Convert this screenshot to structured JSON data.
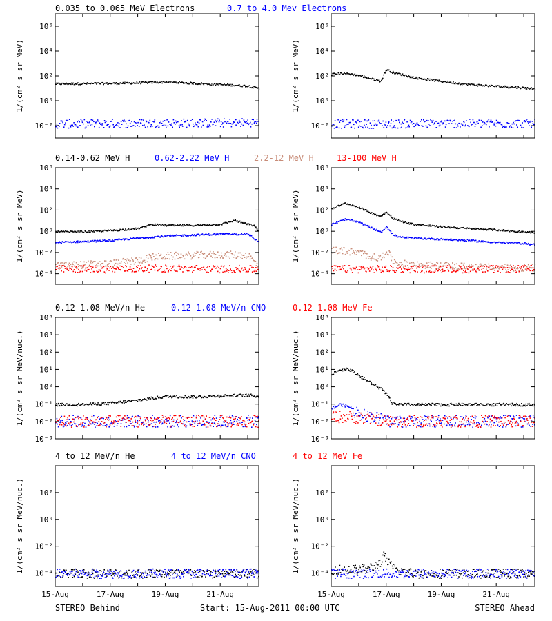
{
  "footer": {
    "left": "STEREO Behind",
    "center": "Start: 15-Aug-2011 00:00 UTC",
    "right": "STEREO Ahead"
  },
  "chart_data": [
    {
      "type": "scatter",
      "row": 1,
      "spacecraft": "STEREO Behind",
      "legend": [
        {
          "text": "0.035 to 0.065 MeV Electrons",
          "color": "#000000"
        },
        {
          "text": "0.7 to 4.0 Mev Electrons",
          "color": "#0000ff"
        }
      ],
      "ylabel": "1/(cm² s sr MeV)",
      "yscale": "log",
      "ylim": [
        0.001,
        10000000
      ],
      "yticks": [
        {
          "v": 0.01,
          "label": "10⁻²"
        },
        {
          "v": 1,
          "label": "10⁰"
        },
        {
          "v": 100,
          "label": "10²"
        },
        {
          "v": 10000,
          "label": "10⁴"
        },
        {
          "v": 1000000,
          "label": "10⁶"
        }
      ],
      "xlim": [
        0,
        7.4
      ],
      "series": [
        {
          "name": "0.035 to 0.065 MeV Electrons",
          "color": "#000000",
          "x": [
            0,
            1,
            2,
            3,
            4,
            5,
            6,
            7,
            7.4
          ],
          "y": [
            25,
            26,
            27,
            30,
            35,
            28,
            22,
            17,
            10
          ]
        },
        {
          "name": "0.7 to 4.0 Mev Electrons",
          "color": "#0000ff",
          "x": [
            0,
            2,
            4,
            6,
            7.4
          ],
          "y": [
            0.015,
            0.016,
            0.017,
            0.018,
            0.02
          ]
        }
      ]
    },
    {
      "type": "scatter",
      "row": 1,
      "spacecraft": "STEREO Ahead",
      "legend": [],
      "ylabel": "1/(cm² s sr MeV)",
      "yscale": "log",
      "ylim": [
        0.001,
        10000000
      ],
      "yticks": [
        {
          "v": 0.01,
          "label": "10⁻²"
        },
        {
          "v": 1,
          "label": "10⁰"
        },
        {
          "v": 100,
          "label": "10²"
        },
        {
          "v": 10000,
          "label": "10⁴"
        },
        {
          "v": 1000000,
          "label": "10⁶"
        }
      ],
      "xlim": [
        0,
        7.4
      ],
      "series": [
        {
          "name": "0.035 to 0.065 MeV Electrons",
          "color": "#000000",
          "x": [
            0,
            0.5,
            1,
            1.5,
            1.8,
            1.9,
            2.0,
            2.2,
            2.5,
            3,
            4,
            5,
            6,
            7,
            7.4
          ],
          "y": [
            150,
            180,
            120,
            60,
            40,
            150,
            350,
            220,
            150,
            80,
            40,
            22,
            16,
            12,
            10
          ]
        },
        {
          "name": "0.7 to 4.0 Mev Electrons",
          "color": "#0000ff",
          "x": [
            0,
            2,
            4,
            6,
            7.4
          ],
          "y": [
            0.015,
            0.015,
            0.016,
            0.016,
            0.016
          ]
        }
      ]
    },
    {
      "type": "scatter",
      "row": 2,
      "spacecraft": "STEREO Behind",
      "legend": [
        {
          "text": "0.14-0.62 MeV H",
          "color": "#000000"
        },
        {
          "text": "0.62-2.22 MeV H",
          "color": "#0000ff"
        },
        {
          "text": "2.2-12 MeV H",
          "color": "#c88c78"
        },
        {
          "text": "13-100 MeV H",
          "color": "#ff0000"
        }
      ],
      "ylabel": "1/(cm² s sr MeV)",
      "yscale": "log",
      "ylim": [
        1e-05,
        1000000
      ],
      "yticks": [
        {
          "v": 0.0001,
          "label": "10⁻⁴"
        },
        {
          "v": 0.01,
          "label": "10⁻²"
        },
        {
          "v": 1,
          "label": "10⁰"
        },
        {
          "v": 100,
          "label": "10²"
        },
        {
          "v": 10000,
          "label": "10⁴"
        },
        {
          "v": 1000000,
          "label": "10⁶"
        }
      ],
      "xlim": [
        0,
        7.4
      ],
      "series": [
        {
          "name": "0.14-0.62 MeV H",
          "color": "#000000",
          "x": [
            0,
            1,
            2,
            3,
            3.5,
            4,
            5,
            6,
            6.5,
            7,
            7.2,
            7.4
          ],
          "y": [
            1,
            1,
            1.3,
            2,
            5,
            4,
            4,
            5,
            12,
            5,
            4,
            1
          ]
        },
        {
          "name": "0.62-2.22 MeV H",
          "color": "#0000ff",
          "x": [
            0,
            1,
            2,
            3,
            4,
            5,
            6,
            7,
            7.4
          ],
          "y": [
            0.1,
            0.12,
            0.15,
            0.25,
            0.4,
            0.5,
            0.6,
            0.6,
            0.1
          ]
        },
        {
          "name": "2.2-12 MeV H",
          "color": "#c88c78",
          "x": [
            0,
            1,
            2,
            3,
            3.5,
            4,
            5,
            6,
            7,
            7.4
          ],
          "y": [
            0.0006,
            0.0008,
            0.001,
            0.002,
            0.004,
            0.005,
            0.006,
            0.007,
            0.006,
            0.0005
          ]
        },
        {
          "name": "13-100 MeV H",
          "color": "#ff0000",
          "x": [
            0,
            2,
            4,
            6,
            7.4
          ],
          "y": [
            0.0003,
            0.0003,
            0.00035,
            0.0003,
            0.0003
          ]
        }
      ]
    },
    {
      "type": "scatter",
      "row": 2,
      "spacecraft": "STEREO Ahead",
      "legend": [],
      "ylabel": "1/(cm² s sr MeV)",
      "yscale": "log",
      "ylim": [
        1e-05,
        1000000
      ],
      "yticks": [
        {
          "v": 0.0001,
          "label": "10⁻⁴"
        },
        {
          "v": 0.01,
          "label": "10⁻²"
        },
        {
          "v": 1,
          "label": "10⁰"
        },
        {
          "v": 100,
          "label": "10²"
        },
        {
          "v": 10000,
          "label": "10⁴"
        },
        {
          "v": 1000000,
          "label": "10⁶"
        }
      ],
      "xlim": [
        0,
        7.4
      ],
      "series": [
        {
          "name": "0.14-0.62 MeV H",
          "color": "#000000",
          "x": [
            0,
            0.5,
            1,
            1.5,
            1.8,
            2.0,
            2.2,
            2.5,
            3,
            4,
            5,
            6,
            7,
            7.4
          ],
          "y": [
            150,
            500,
            200,
            50,
            30,
            80,
            20,
            10,
            5,
            3,
            2,
            1.5,
            1,
            0.8
          ]
        },
        {
          "name": "0.62-2.22 MeV H",
          "color": "#0000ff",
          "x": [
            0,
            0.5,
            1,
            1.5,
            1.8,
            2.0,
            2.2,
            2.5,
            3,
            4,
            5,
            6,
            7,
            7.4
          ],
          "y": [
            5,
            15,
            8,
            2,
            1,
            3,
            0.6,
            0.3,
            0.25,
            0.2,
            0.15,
            0.1,
            0.08,
            0.06
          ]
        },
        {
          "name": "2.2-12 MeV H",
          "color": "#c88c78",
          "x": [
            0,
            0.5,
            1,
            1.5,
            1.8,
            2.0,
            2.2,
            2.5,
            3,
            4,
            5,
            6,
            7,
            7.4
          ],
          "y": [
            0.02,
            0.015,
            0.01,
            0.004,
            0.003,
            0.02,
            0.002,
            0.001,
            0.0008,
            0.0006,
            0.0005,
            0.0004,
            0.0004,
            0.0004
          ]
        },
        {
          "name": "13-100 MeV H",
          "color": "#ff0000",
          "x": [
            0,
            2,
            4,
            6,
            7.4
          ],
          "y": [
            0.0003,
            0.0003,
            0.0003,
            0.0003,
            0.0003
          ]
        }
      ]
    },
    {
      "type": "scatter",
      "row": 3,
      "spacecraft": "STEREO Behind",
      "legend": [
        {
          "text": "0.12-1.08 MeV/n He",
          "color": "#000000"
        },
        {
          "text": "0.12-1.08 MeV/n CNO",
          "color": "#0000ff"
        },
        {
          "text": "0.12-1.08 MeV Fe",
          "color": "#ff0000"
        }
      ],
      "ylabel": "1/(cm² s sr MeV/nuc.)",
      "yscale": "log",
      "ylim": [
        0.001,
        10000
      ],
      "yticks": [
        {
          "v": 0.001,
          "label": "10⁻³"
        },
        {
          "v": 0.01,
          "label": "10⁻²"
        },
        {
          "v": 0.1,
          "label": "10⁻¹"
        },
        {
          "v": 1,
          "label": "10⁰"
        },
        {
          "v": 10,
          "label": "10¹"
        },
        {
          "v": 100,
          "label": "10²"
        },
        {
          "v": 1000,
          "label": "10³"
        },
        {
          "v": 10000,
          "label": "10⁴"
        }
      ],
      "xlim": [
        0,
        7.4
      ],
      "series": [
        {
          "name": "0.12-1.08 MeV/n He",
          "color": "#000000",
          "x": [
            0,
            1,
            2,
            3,
            4,
            5,
            6,
            7,
            7.4
          ],
          "y": [
            0.1,
            0.1,
            0.12,
            0.18,
            0.3,
            0.28,
            0.32,
            0.35,
            0.3
          ]
        },
        {
          "name": "0.12-1.08 MeV/n CNO",
          "color": "#0000ff",
          "x": [
            0,
            2,
            4,
            6,
            7.4
          ],
          "y": [
            0.011,
            0.011,
            0.011,
            0.011,
            0.011
          ]
        },
        {
          "name": "0.12-1.08 MeV Fe",
          "color": "#ff0000",
          "x": [
            0,
            2,
            4,
            6,
            7.4
          ],
          "y": [
            0.011,
            0.011,
            0.011,
            0.011,
            0.011
          ]
        }
      ]
    },
    {
      "type": "scatter",
      "row": 3,
      "spacecraft": "STEREO Ahead",
      "legend": [],
      "ylabel": "1/(cm² s sr MeV/nuc.)",
      "yscale": "log",
      "ylim": [
        0.001,
        10000
      ],
      "yticks": [
        {
          "v": 0.001,
          "label": "10⁻³"
        },
        {
          "v": 0.01,
          "label": "10⁻²"
        },
        {
          "v": 0.1,
          "label": "10⁻¹"
        },
        {
          "v": 1,
          "label": "10⁰"
        },
        {
          "v": 10,
          "label": "10¹"
        },
        {
          "v": 100,
          "label": "10²"
        },
        {
          "v": 1000,
          "label": "10³"
        },
        {
          "v": 10000,
          "label": "10⁴"
        }
      ],
      "xlim": [
        0,
        7.4
      ],
      "series": [
        {
          "name": "0.12-1.08 MeV/n He",
          "color": "#000000",
          "x": [
            0,
            0.3,
            0.6,
            0.9,
            1.2,
            1.5,
            1.8,
            2.0,
            2.2,
            2.5,
            3,
            4,
            5,
            6,
            7,
            7.4
          ],
          "y": [
            6,
            10,
            12,
            6,
            3,
            1.5,
            0.8,
            0.4,
            0.12,
            0.1,
            0.1,
            0.1,
            0.1,
            0.1,
            0.1,
            0.1
          ]
        },
        {
          "name": "0.12-1.08 MeV/n CNO",
          "color": "#0000ff",
          "x": [
            0,
            0.3,
            0.6,
            0.9,
            1.2,
            1.5,
            2.0,
            3,
            4,
            5,
            6,
            7,
            7.4
          ],
          "y": [
            0.06,
            0.1,
            0.08,
            0.04,
            0.025,
            0.02,
            0.011,
            0.011,
            0.011,
            0.011,
            0.011,
            0.011,
            0.011
          ]
        },
        {
          "name": "0.12-1.08 MeV Fe",
          "color": "#ff0000",
          "x": [
            0,
            0.5,
            1,
            1.5,
            2,
            3,
            4,
            5,
            6,
            7,
            7.4
          ],
          "y": [
            0.02,
            0.02,
            0.018,
            0.015,
            0.011,
            0.011,
            0.011,
            0.011,
            0.011,
            0.011,
            0.011
          ]
        }
      ]
    },
    {
      "type": "scatter",
      "row": 4,
      "spacecraft": "STEREO Behind",
      "legend": [
        {
          "text": "4 to 12 MeV/n He",
          "color": "#000000"
        },
        {
          "text": "4 to 12 MeV/n CNO",
          "color": "#0000ff"
        },
        {
          "text": "4 to 12 MeV Fe",
          "color": "#ff0000"
        }
      ],
      "ylabel": "1/(cm² s sr MeV/nuc.)",
      "yscale": "log",
      "ylim": [
        1e-05,
        10000
      ],
      "yticks": [
        {
          "v": 0.0001,
          "label": "10⁻⁴"
        },
        {
          "v": 0.01,
          "label": "10⁻²"
        },
        {
          "v": 1,
          "label": "10⁰"
        },
        {
          "v": 100,
          "label": "10²"
        }
      ],
      "xticks": [
        {
          "v": 0,
          "label": "15-Aug"
        },
        {
          "v": 2,
          "label": "17-Aug"
        },
        {
          "v": 4,
          "label": "19-Aug"
        },
        {
          "v": 6,
          "label": "21-Aug"
        }
      ],
      "xlim": [
        0,
        7.4
      ],
      "series": [
        {
          "name": "4 to 12 MeV/n He",
          "color": "#000000",
          "x": [
            0,
            2,
            4,
            6,
            7.4
          ],
          "y": [
            0.0001,
            0.0001,
            0.0001,
            0.0001,
            0.0001
          ]
        },
        {
          "name": "4 to 12 MeV/n CNO",
          "color": "#0000ff",
          "x": [
            0,
            2,
            4,
            6,
            7.4
          ],
          "y": [
            0.0001,
            0.0001,
            0.0001,
            0.0001,
            0.0001
          ]
        }
      ]
    },
    {
      "type": "scatter",
      "row": 4,
      "spacecraft": "STEREO Ahead",
      "legend": [],
      "ylabel": "1/(cm² s sr MeV/nuc.)",
      "yscale": "log",
      "ylim": [
        1e-05,
        10000
      ],
      "yticks": [
        {
          "v": 0.0001,
          "label": "10⁻⁴"
        },
        {
          "v": 0.01,
          "label": "10⁻²"
        },
        {
          "v": 1,
          "label": "10⁰"
        },
        {
          "v": 100,
          "label": "10²"
        }
      ],
      "xticks": [
        {
          "v": 0,
          "label": "15-Aug"
        },
        {
          "v": 2,
          "label": "17-Aug"
        },
        {
          "v": 4,
          "label": "19-Aug"
        },
        {
          "v": 6,
          "label": "21-Aug"
        }
      ],
      "xlim": [
        0,
        7.4
      ],
      "series": [
        {
          "name": "4 to 12 MeV/n He",
          "color": "#000000",
          "x": [
            0,
            0.5,
            1,
            1.5,
            1.8,
            1.9,
            2.0,
            2.1,
            2.3,
            3,
            4,
            5,
            6,
            7,
            7.4
          ],
          "y": [
            0.0002,
            0.0002,
            0.0002,
            0.0003,
            0.0008,
            0.002,
            0.001,
            0.0005,
            0.0002,
            0.0001,
            0.0001,
            0.0001,
            0.0001,
            0.0001,
            0.0001
          ]
        },
        {
          "name": "4 to 12 MeV/n CNO",
          "color": "#0000ff",
          "x": [
            3,
            4,
            5,
            6,
            7.4
          ],
          "y": [
            0.0001,
            0.0001,
            0.0001,
            0.0001,
            0.0001
          ]
        }
      ]
    }
  ]
}
